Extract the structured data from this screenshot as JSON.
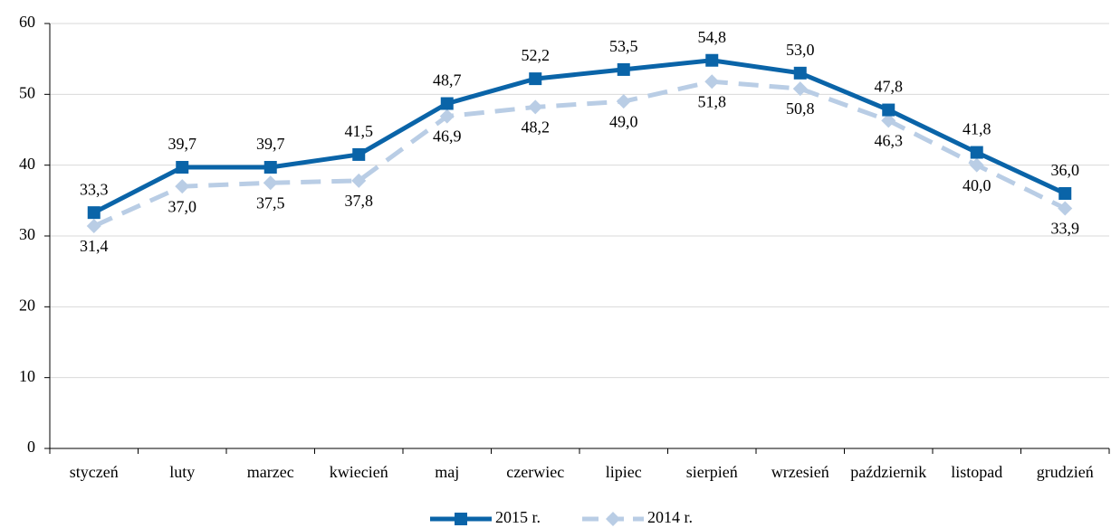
{
  "chart_data": {
    "type": "line",
    "categories": [
      "styczeń",
      "luty",
      "marzec",
      "kwiecień",
      "maj",
      "czerwiec",
      "lipiec",
      "sierpień",
      "wrzesień",
      "październik",
      "listopad",
      "grudzień"
    ],
    "series": [
      {
        "name": "2015 r.",
        "color": "#0a64a8",
        "marker": "square",
        "dash": false,
        "values": [
          33.3,
          39.7,
          39.7,
          41.5,
          48.7,
          52.2,
          53.5,
          54.8,
          53.0,
          47.8,
          41.8,
          36.0
        ],
        "value_labels": [
          "33,3",
          "39,7",
          "39,7",
          "41,5",
          "48,7",
          "52,2",
          "53,5",
          "54,8",
          "53,0",
          "47,8",
          "41,8",
          "36,0"
        ]
      },
      {
        "name": "2014 r.",
        "color": "#b9cde5",
        "marker": "diamond",
        "dash": true,
        "values": [
          31.4,
          37.0,
          37.5,
          37.8,
          46.9,
          48.2,
          49.0,
          51.8,
          50.8,
          46.3,
          40.0,
          33.9
        ],
        "value_labels": [
          "31,4",
          "37,0",
          "37,5",
          "37,8",
          "46,9",
          "48,2",
          "49,0",
          "51,8",
          "50,8",
          "46,3",
          "40,0",
          "33,9"
        ]
      }
    ],
    "ylim": [
      0,
      60
    ],
    "yticks": [
      0,
      10,
      20,
      30,
      40,
      50,
      60
    ],
    "grid": true,
    "legend": "bottom"
  }
}
